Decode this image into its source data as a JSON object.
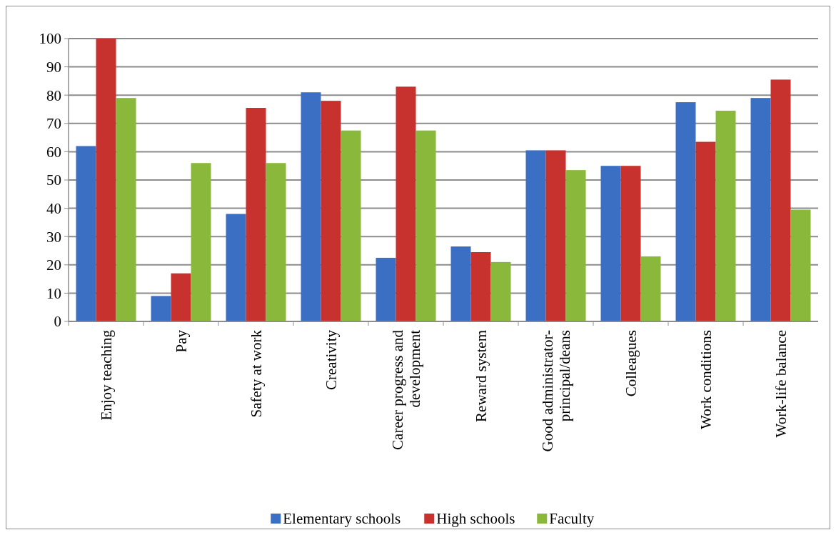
{
  "chart_data": {
    "type": "bar",
    "categories": [
      "Enjoy teaching",
      "Pay",
      "Safety at work",
      "Creativity",
      "Career progress and development",
      "Reward system",
      "Good administrator-principal/deans",
      "Colleagues",
      "Work conditions",
      "Work-life balance"
    ],
    "series": [
      {
        "name": "Elementary schools",
        "color": "#3a6fc4",
        "values": [
          62,
          9,
          38,
          81,
          22.5,
          26.5,
          60.5,
          55,
          77.5,
          79
        ]
      },
      {
        "name": "High schools",
        "color": "#c8322e",
        "values": [
          100,
          17,
          75.5,
          78,
          83,
          24.5,
          60.5,
          55,
          63.5,
          85.5
        ]
      },
      {
        "name": "Faculty",
        "color": "#8ab83a",
        "values": [
          79,
          56,
          56,
          67.5,
          67.5,
          21,
          53.5,
          23,
          74.5,
          39.5
        ]
      }
    ],
    "ylim": [
      0,
      100
    ],
    "yticks": [
      0,
      10,
      20,
      30,
      40,
      50,
      60,
      70,
      80,
      90,
      100
    ],
    "grid": "y",
    "legend": "bottom"
  }
}
